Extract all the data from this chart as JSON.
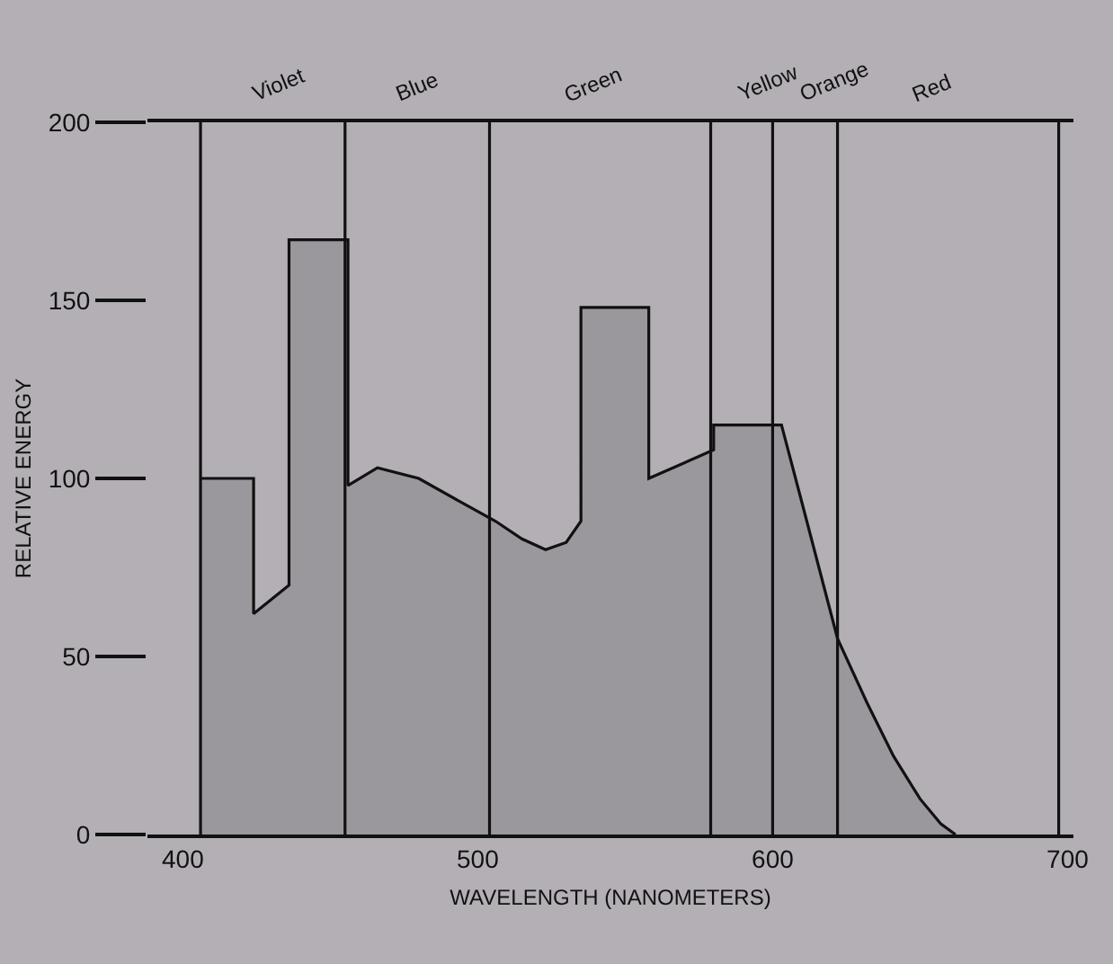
{
  "chart_data": {
    "type": "area",
    "xlabel": "WAVELENGTH (NANOMETERS)",
    "ylabel": "RELATIVE ENERGY",
    "xlim": [
      388,
      702
    ],
    "ylim": [
      0,
      200
    ],
    "xticks": [
      400,
      500,
      600,
      700
    ],
    "yticks": [
      0,
      50,
      100,
      150,
      200
    ],
    "grid": false,
    "legend": false,
    "series": [
      {
        "color": "#9b989d",
        "x": [
          406,
          424,
          424,
          436,
          436,
          456,
          456,
          466,
          480,
          495,
          506,
          515,
          523,
          530,
          535,
          535,
          558,
          558,
          580,
          580,
          603,
          610,
          622,
          632,
          641,
          650,
          657,
          662
        ],
        "values": [
          100,
          100,
          62,
          70,
          167,
          167,
          98,
          103,
          100,
          93,
          88,
          83,
          80,
          82,
          88,
          148,
          148,
          100,
          108,
          115,
          115,
          93,
          55,
          37,
          22,
          10,
          3,
          0
        ]
      }
    ],
    "ref_lines": [
      {
        "axis": "x",
        "value": 406
      },
      {
        "axis": "x",
        "value": 455
      },
      {
        "axis": "x",
        "value": 504
      },
      {
        "axis": "x",
        "value": 579
      },
      {
        "axis": "x",
        "value": 600
      },
      {
        "axis": "x",
        "value": 622
      },
      {
        "axis": "x",
        "value": 697
      }
    ],
    "annotations": [
      "Violet",
      "Blue",
      "Green",
      "Yellow",
      "Orange",
      "Red"
    ]
  }
}
